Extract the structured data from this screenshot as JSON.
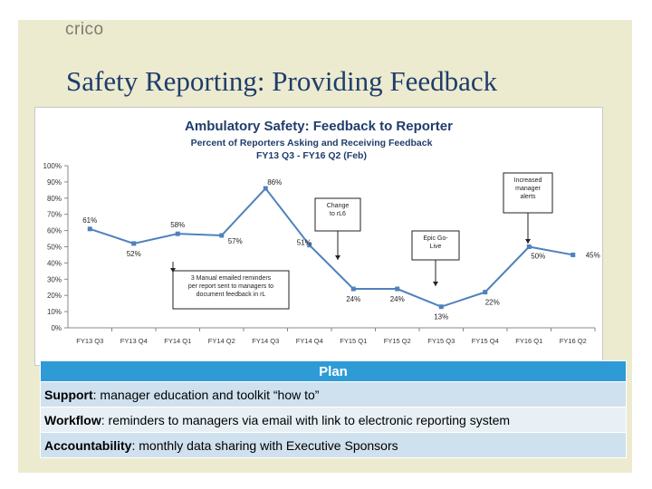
{
  "logo": "crico",
  "slide_title": "Safety Reporting: Providing Feedback",
  "colors": {
    "title": "#1f3d6b",
    "line": "#4f81bd",
    "plan_header": "#2e9bd6"
  },
  "chart_data": {
    "type": "line",
    "title": "Ambulatory Safety: Feedback to Reporter",
    "subtitle": "Percent of Reporters Asking and Receiving Feedback",
    "subtitle2": "FY13 Q3 - FY16 Q2 (Feb)",
    "categories": [
      "FY13 Q3",
      "FY13 Q4",
      "FY14 Q1",
      "FY14 Q2",
      "FY14 Q3",
      "FY14 Q4",
      "FY15 Q1",
      "FY15 Q2",
      "FY15 Q3",
      "FY15 Q4",
      "FY16 Q1",
      "FY16 Q2"
    ],
    "values": [
      61,
      52,
      58,
      57,
      86,
      51,
      24,
      24,
      13,
      22,
      50,
      45
    ],
    "data_labels": [
      "61%",
      "52%",
      "58%",
      "57%",
      "86%",
      "51%",
      "24%",
      "24%",
      "13%",
      "22%",
      "50%",
      "45%"
    ],
    "ylim": [
      0,
      100
    ],
    "yticks": [
      "0%",
      "10%",
      "20%",
      "30%",
      "40%",
      "50%",
      "60%",
      "70%",
      "80%",
      "90%",
      "100%"
    ],
    "grid": false,
    "annotations": [
      {
        "text": "3 Manual emailed reminders per report sent to managers to document feedback in rL",
        "at": "FY14 Q2"
      },
      {
        "text": "Change to rL6",
        "at": "FY14 Q4"
      },
      {
        "text": "Epic Go-Live",
        "at": "FY15 Q3"
      },
      {
        "text": "Increased manager alerts",
        "at": "FY16 Q1"
      }
    ]
  },
  "plan": {
    "header": "Plan",
    "rows": [
      {
        "label": "Support",
        "text": ": manager education and toolkit “how to”"
      },
      {
        "label": "Workflow",
        "text": ": reminders to managers via email with link to electronic reporting system"
      },
      {
        "label": "Accountability",
        "text": ": monthly data sharing with Executive Sponsors"
      }
    ]
  }
}
